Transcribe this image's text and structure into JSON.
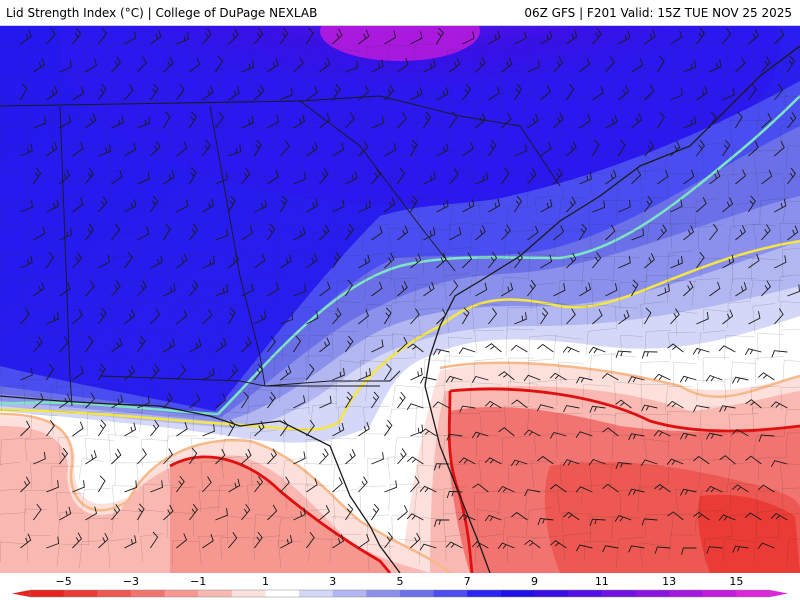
{
  "header": {
    "title": "Lid Strength Index (°C) | College of DuPage NEXLAB",
    "run": "06Z GFS | F201 Valid: 15Z TUE NOV 25 2025"
  },
  "map": {
    "field": "Lid Strength Index",
    "overlay": "wind barbs",
    "contours": [
      {
        "level": 5,
        "color": "#7de6c0"
      },
      {
        "level": 3,
        "color": "#f5e642"
      },
      {
        "level": 1,
        "color": "#f7b98a"
      },
      {
        "level": -1,
        "color": "#e01010"
      }
    ]
  },
  "legend": {
    "ticks": [
      "−5",
      "−3",
      "−1",
      "1",
      "3",
      "5",
      "7",
      "9",
      "11",
      "13",
      "15"
    ],
    "tick_values": [
      -5,
      -3,
      -1,
      1,
      3,
      5,
      7,
      9,
      11,
      13,
      15
    ],
    "range": [
      -6,
      16
    ],
    "bins": [
      {
        "from": -6,
        "to": -5,
        "color": "#e6231e"
      },
      {
        "from": -5,
        "to": -4,
        "color": "#ea3b36"
      },
      {
        "from": -4,
        "to": -3,
        "color": "#ee5853"
      },
      {
        "from": -3,
        "to": -2,
        "color": "#f27471"
      },
      {
        "from": -2,
        "to": -1,
        "color": "#f6988f"
      },
      {
        "from": -1,
        "to": 0,
        "color": "#fab8b3"
      },
      {
        "from": 0,
        "to": 1,
        "color": "#fde0dc"
      },
      {
        "from": 1,
        "to": 2,
        "color": "#ffffff"
      },
      {
        "from": 2,
        "to": 3,
        "color": "#d4d7f7"
      },
      {
        "from": 3,
        "to": 4,
        "color": "#b2b7f2"
      },
      {
        "from": 4,
        "to": 5,
        "color": "#8a90ec"
      },
      {
        "from": 5,
        "to": 6,
        "color": "#6c70e8"
      },
      {
        "from": 6,
        "to": 7,
        "color": "#4a4ef0"
      },
      {
        "from": 7,
        "to": 8,
        "color": "#2a25f4"
      },
      {
        "from": 8,
        "to": 9,
        "color": "#2012e6"
      },
      {
        "from": 9,
        "to": 10,
        "color": "#3a0fe6"
      },
      {
        "from": 10,
        "to": 11,
        "color": "#5410e4"
      },
      {
        "from": 11,
        "to": 12,
        "color": "#6f12e2"
      },
      {
        "from": 12,
        "to": 13,
        "color": "#8a14e0"
      },
      {
        "from": 13,
        "to": 14,
        "color": "#a418de"
      },
      {
        "from": 14,
        "to": 15,
        "color": "#c01cdc"
      },
      {
        "from": 15,
        "to": 16,
        "color": "#dc26da"
      }
    ]
  }
}
